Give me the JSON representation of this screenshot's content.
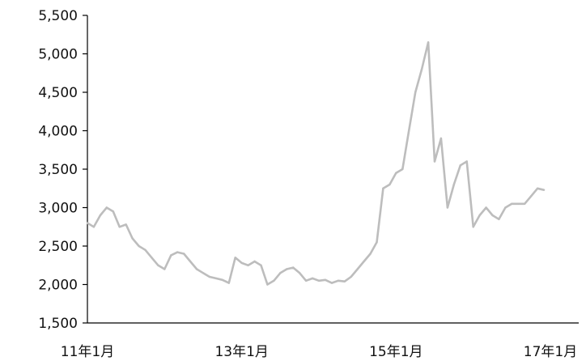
{
  "chart_data": {
    "type": "line",
    "title": "",
    "xlabel": "",
    "ylabel": "",
    "ylim": [
      1500,
      5500
    ],
    "yticks": [
      1500,
      2000,
      2500,
      3000,
      3500,
      4000,
      4500,
      5000,
      5500
    ],
    "ytick_labels": [
      "1,500",
      "2,000",
      "2,500",
      "3,000",
      "3,500",
      "4,000",
      "4,500",
      "5,000",
      "5,500"
    ],
    "xticks": [
      "2011-01",
      "2013-01",
      "2015-01",
      "2017-01"
    ],
    "xtick_labels": [
      "11年1月",
      "13年1月",
      "15年1月",
      "17年1月"
    ],
    "grid": false,
    "legend": "none",
    "colors": {
      "line": "#bdbdbd",
      "axis": "#000000",
      "text": "#111111"
    },
    "series": [
      {
        "x": [
          "2011-01",
          "2011-02",
          "2011-03",
          "2011-04",
          "2011-05",
          "2011-06",
          "2011-07",
          "2011-08",
          "2011-09",
          "2011-10",
          "2011-11",
          "2011-12",
          "2012-01",
          "2012-02",
          "2012-03",
          "2012-04",
          "2012-05",
          "2012-06",
          "2012-07",
          "2012-08",
          "2012-09",
          "2012-10",
          "2012-11",
          "2012-12",
          "2013-01",
          "2013-02",
          "2013-03",
          "2013-04",
          "2013-05",
          "2013-06",
          "2013-07",
          "2013-08",
          "2013-09",
          "2013-10",
          "2013-11",
          "2013-12",
          "2014-01",
          "2014-02",
          "2014-03",
          "2014-04",
          "2014-05",
          "2014-06",
          "2014-07",
          "2014-08",
          "2014-09",
          "2014-10",
          "2014-11",
          "2014-12",
          "2015-01",
          "2015-02",
          "2015-03",
          "2015-04",
          "2015-05",
          "2015-06",
          "2015-07",
          "2015-08",
          "2015-09",
          "2015-10",
          "2015-11",
          "2015-12",
          "2016-01",
          "2016-02",
          "2016-03",
          "2016-04",
          "2016-05",
          "2016-06",
          "2016-07",
          "2016-08",
          "2016-09",
          "2016-10",
          "2016-11",
          "2016-12"
        ],
        "y": [
          2800,
          2750,
          2900,
          3000,
          2950,
          2750,
          2780,
          2600,
          2500,
          2450,
          2350,
          2250,
          2200,
          2380,
          2420,
          2400,
          2300,
          2200,
          2150,
          2100,
          2080,
          2060,
          2020,
          2350,
          2280,
          2250,
          2300,
          2250,
          2000,
          2050,
          2150,
          2200,
          2220,
          2150,
          2050,
          2080,
          2050,
          2060,
          2020,
          2050,
          2040,
          2100,
          2200,
          2300,
          2400,
          2550,
          3250,
          3300,
          3450,
          3500,
          4000,
          4500,
          4800,
          5150,
          3600,
          3900,
          3000,
          3300,
          3550,
          3600,
          2750,
          2900,
          3000,
          2900,
          2850,
          3000,
          3050,
          3050,
          3050,
          3150,
          3250,
          3230
        ]
      }
    ]
  }
}
